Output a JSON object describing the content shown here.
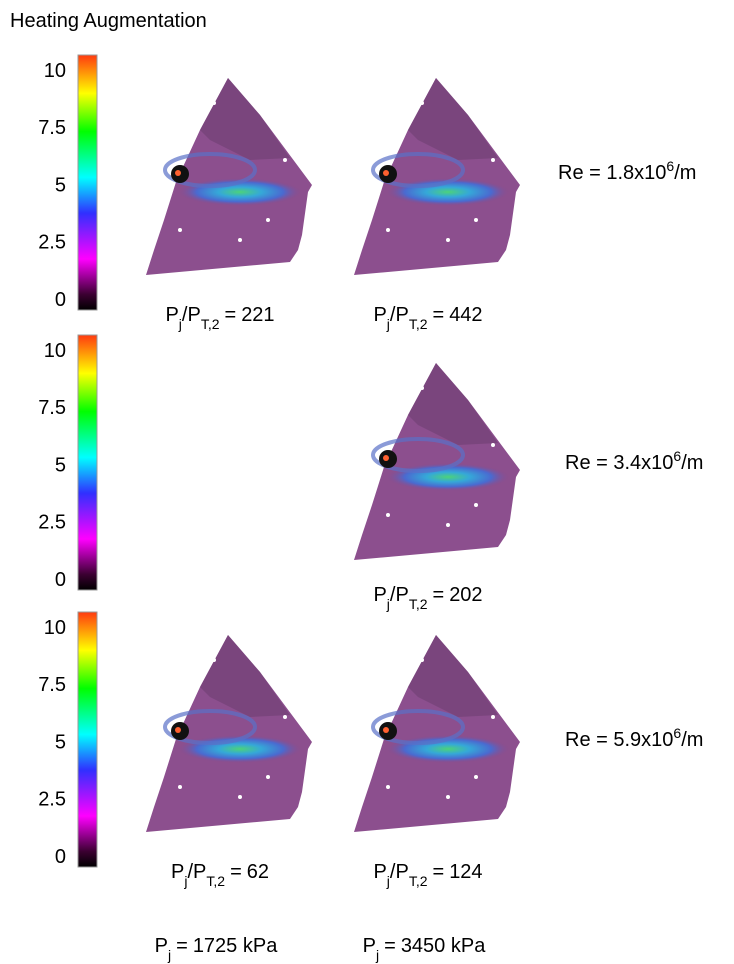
{
  "title": "Heating Augmentation",
  "colorbar": {
    "ticks": [
      10,
      7.5,
      5,
      2.5,
      0
    ]
  },
  "ratio_label": {
    "p": "P",
    "sub1": "j",
    "slash": "/P",
    "sub2": "T,2",
    "eq": "="
  },
  "rows": [
    {
      "re": {
        "text": "Re = 1.8x10",
        "exp": "6",
        "unit": "/m"
      },
      "panels": [
        {
          "ratio": "221"
        },
        {
          "ratio": "442"
        }
      ]
    },
    {
      "re": {
        "text": "Re = 3.4x10",
        "exp": "6",
        "unit": "/m"
      },
      "panels": [
        {
          "ratio": "202"
        }
      ]
    },
    {
      "re": {
        "text": "Re = 5.9x10",
        "exp": "6",
        "unit": "/m"
      },
      "panels": [
        {
          "ratio": "62"
        },
        {
          "ratio": "124"
        }
      ]
    }
  ],
  "pressure_label": {
    "p": "P",
    "sub": "j",
    "eq": "="
  },
  "pressures": [
    "1725 kPa",
    "3450 kPa"
  ]
}
